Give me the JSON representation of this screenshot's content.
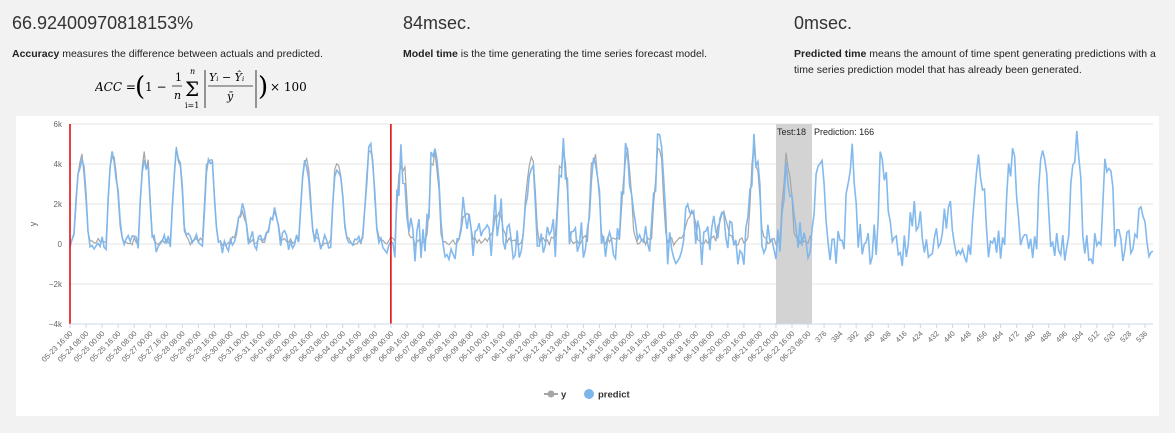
{
  "metrics": {
    "accuracy": {
      "value": "66.92400970818153%",
      "term": "Accuracy",
      "text": " measures the difference between actuals and predicted.",
      "formula": {
        "lhs": "ACC = ",
        "one": "1 −",
        "frac_num": "1",
        "frac_den": "n",
        "sum_top": "n",
        "sum_bot": "i=1",
        "inner_num": "Yᵢ − Ŷᵢ",
        "inner_den": "ȳ",
        "times": "× 100"
      }
    },
    "model_time": {
      "value": "84msec.",
      "term": "Model time",
      "text": " is the time generating the time series forecast model."
    },
    "predicted_time": {
      "value": "0msec.",
      "term": "Predicted time",
      "text": " means the amount of time spent generating predictions with a time series prediction model that has already been generated."
    }
  },
  "chart_data": {
    "type": "line",
    "ylabel": "y",
    "ylim": [
      -4000,
      6000
    ],
    "y_ticks": [
      {
        "v": 6000,
        "label": "6k"
      },
      {
        "v": 4000,
        "label": "4k"
      },
      {
        "v": 2000,
        "label": "2k"
      },
      {
        "v": 0,
        "label": "0"
      },
      {
        "v": -2000,
        "label": "−2k"
      },
      {
        "v": -4000,
        "label": "−4k"
      }
    ],
    "x_ticks": [
      "05-23 16:00",
      "05-24 08:00",
      "05-25 00:00",
      "05-25 16:00",
      "05-26 08:00",
      "05-27 00:00",
      "05-27 16:00",
      "05-28 08:00",
      "05-29 00:00",
      "05-29 16:00",
      "05-30 08:00",
      "05-31 00:00",
      "05-31 16:00",
      "06-01 08:00",
      "06-02 00:00",
      "06-02 16:00",
      "06-03 08:00",
      "06-04 00:00",
      "06-04 16:00",
      "06-05 08:00",
      "06-06 00:00",
      "06-06 16:00",
      "06-07 08:00",
      "06-08 00:00",
      "06-08 16:00",
      "06-09 08:00",
      "06-10 00:00",
      "06-10 16:00",
      "06-11 08:00",
      "06-12 00:00",
      "06-12 16:00",
      "06-13 08:00",
      "06-14 00:00",
      "06-14 16:00",
      "06-15 08:00",
      "06-16 00:00",
      "06-16 16:00",
      "06-17 08:00",
      "06-18 00:00",
      "06-18 16:00",
      "06-19 08:00",
      "06-20 00:00",
      "06-20 16:00",
      "06-21 08:00",
      "06-22 00:00",
      "06-22 16:00",
      "06-23 08:00",
      "376",
      "384",
      "392",
      "400",
      "408",
      "416",
      "424",
      "432",
      "440",
      "448",
      "456",
      "464",
      "472",
      "480",
      "488",
      "496",
      "504",
      "512",
      "520",
      "528",
      "536"
    ],
    "x_range": [
      0,
      540
    ],
    "actual_end_index": 370,
    "train_marker_start_index": 0,
    "train_marker_end_index": 160,
    "test_band": {
      "from_index": 352,
      "to_index": 370,
      "label": "Test:18",
      "prediction_label": "Prediction: 166"
    },
    "series": [
      {
        "name": "y",
        "color": "#a6a6a6",
        "pattern": {
          "period": 16,
          "amp_weekday": 4200,
          "amp_weekend": 1200
        }
      },
      {
        "name": "predict",
        "color": "#7cb5ec"
      }
    ],
    "legend_position": "bottom",
    "markers_color": "#e00000",
    "band_color": "#d3d3d3"
  }
}
